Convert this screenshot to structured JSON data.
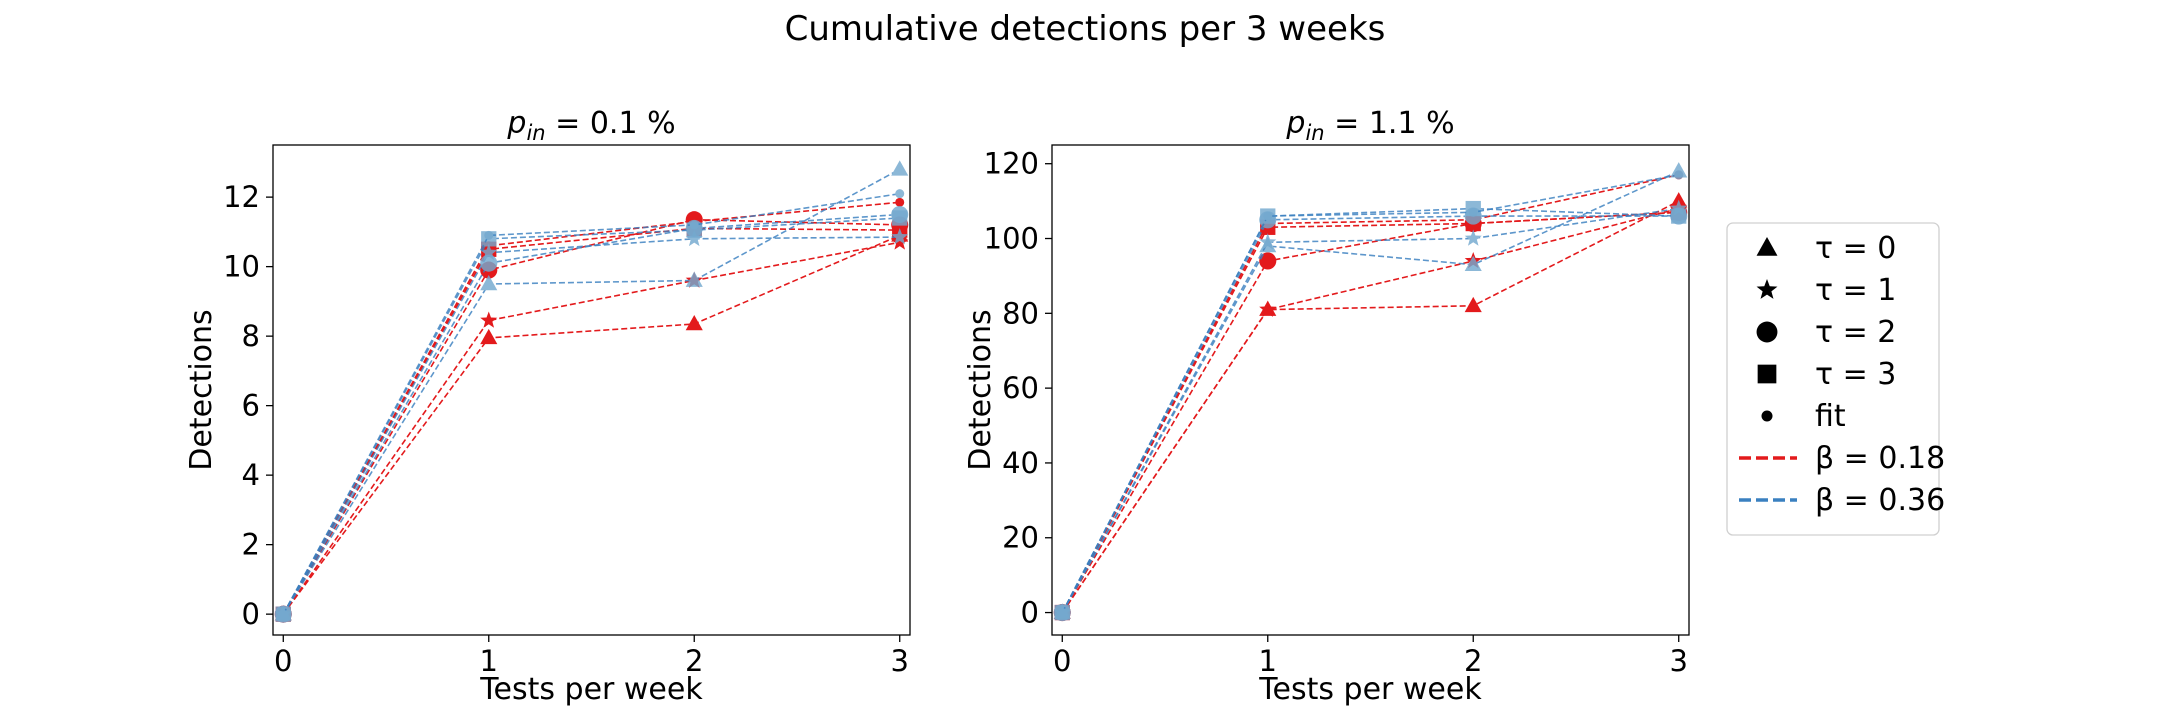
{
  "figure": {
    "title": "Cumulative detections per 3 weeks"
  },
  "legend": {
    "placement": "right",
    "entries": [
      {
        "kind": "marker",
        "marker": "triangle",
        "label": "τ = 0"
      },
      {
        "kind": "marker",
        "marker": "star",
        "label": "τ = 1"
      },
      {
        "kind": "marker",
        "marker": "circle",
        "label": "τ = 2"
      },
      {
        "kind": "marker",
        "marker": "square",
        "label": "τ = 3"
      },
      {
        "kind": "marker",
        "marker": "dot",
        "label": "fit"
      },
      {
        "kind": "line",
        "color": "#e31a1c",
        "label": "β = 0.18"
      },
      {
        "kind": "line",
        "color": "#3a80c0",
        "label": "β = 0.36"
      }
    ]
  },
  "colors": {
    "beta_0_18": "#e31a1c",
    "beta_0_36": "#3a80c0",
    "beta_0_36_marker": "#74a9cf"
  },
  "chart_data": [
    {
      "type": "line",
      "title_prefix": "p",
      "title_sub": "in",
      "title_suffix": " = 0.1 %",
      "xlabel": "Tests per week",
      "ylabel": "Detections",
      "x": [
        0,
        1,
        2,
        3
      ],
      "xlim": [
        -0.05,
        3.05
      ],
      "ylim": [
        -0.6,
        13.5
      ],
      "xticks": [
        0,
        1,
        2,
        3
      ],
      "yticks": [
        0,
        2,
        4,
        6,
        8,
        10,
        12
      ],
      "grid": false,
      "series": [
        {
          "beta": "0.18",
          "marker": "triangle",
          "values": [
            0,
            7.95,
            8.35,
            10.9
          ]
        },
        {
          "beta": "0.18",
          "marker": "star",
          "values": [
            0,
            8.45,
            9.6,
            10.7
          ]
        },
        {
          "beta": "0.18",
          "marker": "circle",
          "values": [
            0,
            9.9,
            11.35,
            11.2
          ]
        },
        {
          "beta": "0.18",
          "marker": "square",
          "values": [
            0,
            10.5,
            11.1,
            11.05
          ]
        },
        {
          "beta": "0.18",
          "marker": "dot",
          "values": [
            0,
            10.6,
            11.3,
            11.85
          ]
        },
        {
          "beta": "0.36",
          "marker": "triangle",
          "values": [
            0,
            9.5,
            9.6,
            12.8
          ]
        },
        {
          "beta": "0.36",
          "marker": "star",
          "values": [
            0,
            10.4,
            10.8,
            10.85
          ]
        },
        {
          "beta": "0.36",
          "marker": "circle",
          "values": [
            0,
            10.1,
            11.1,
            11.5
          ]
        },
        {
          "beta": "0.36",
          "marker": "square",
          "values": [
            0,
            10.8,
            11.05,
            11.4
          ]
        },
        {
          "beta": "0.36",
          "marker": "dot",
          "values": [
            0,
            10.9,
            11.2,
            12.1
          ]
        }
      ]
    },
    {
      "type": "line",
      "title_prefix": "p",
      "title_sub": "in",
      "title_suffix": " = 1.1 %",
      "xlabel": "Tests per week",
      "ylabel": "Detections",
      "x": [
        0,
        1,
        2,
        3
      ],
      "xlim": [
        -0.05,
        3.05
      ],
      "ylim": [
        -6,
        125
      ],
      "xticks": [
        0,
        1,
        2,
        3
      ],
      "yticks": [
        0,
        20,
        40,
        60,
        80,
        100,
        120
      ],
      "grid": false,
      "series": [
        {
          "beta": "0.18",
          "marker": "triangle",
          "values": [
            0,
            81,
            82,
            110
          ]
        },
        {
          "beta": "0.18",
          "marker": "star",
          "values": [
            0,
            81,
            94,
            108
          ]
        },
        {
          "beta": "0.18",
          "marker": "circle",
          "values": [
            0,
            94,
            104,
            107
          ]
        },
        {
          "beta": "0.18",
          "marker": "square",
          "values": [
            0,
            103,
            104,
            107
          ]
        },
        {
          "beta": "0.18",
          "marker": "dot",
          "values": [
            0,
            104,
            105,
            117
          ]
        },
        {
          "beta": "0.36",
          "marker": "triangle",
          "values": [
            0,
            98,
            93,
            118
          ]
        },
        {
          "beta": "0.36",
          "marker": "star",
          "values": [
            0,
            99,
            100,
            108
          ]
        },
        {
          "beta": "0.36",
          "marker": "circle",
          "values": [
            0,
            105,
            106,
            106
          ]
        },
        {
          "beta": "0.36",
          "marker": "square",
          "values": [
            0,
            106,
            108,
            106
          ]
        },
        {
          "beta": "0.36",
          "marker": "dot",
          "values": [
            0,
            106,
            107,
            117
          ]
        }
      ]
    }
  ]
}
